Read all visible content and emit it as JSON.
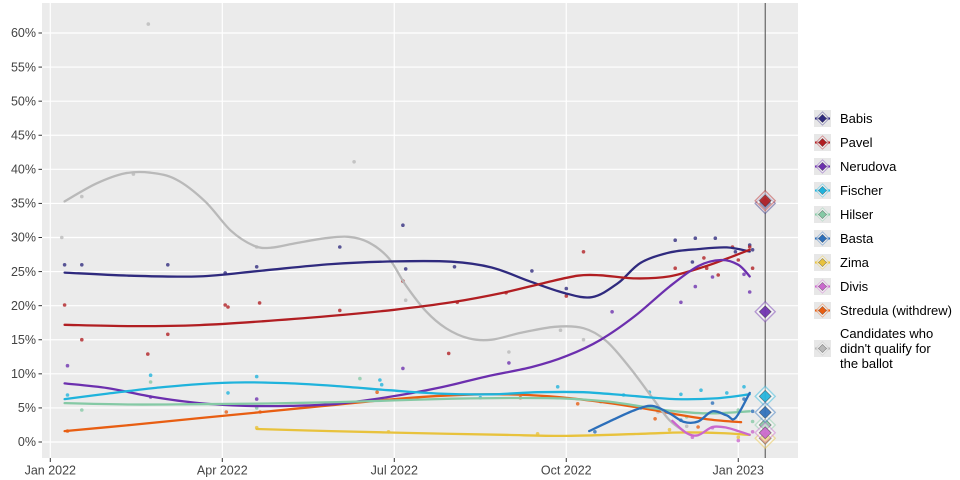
{
  "chart_data": {
    "type": "line",
    "title": "",
    "x_axis": {
      "tick_labels": [
        "Jan 2022",
        "Apr 2022",
        "Jul 2022",
        "Oct 2022",
        "Jan 2023"
      ],
      "tick_months": [
        0,
        3,
        6,
        9,
        12
      ]
    },
    "y_axis": {
      "tick_labels": [
        "0%",
        "5%",
        "10%",
        "15%",
        "20%",
        "25%",
        "30%",
        "35%",
        "40%",
        "45%",
        "50%",
        "55%",
        "60%"
      ],
      "tick_values": [
        0,
        5,
        10,
        15,
        20,
        25,
        30,
        35,
        40,
        45,
        50,
        55,
        60
      ],
      "min": 0,
      "max": 60
    },
    "grid": true,
    "legend_position": "right",
    "plot_bg": "#ebebeb",
    "grid_color": "#ffffff",
    "axis_text_color": "#444444",
    "election_line_month": 12.47,
    "election_line_color": "#4a4a4a",
    "series": [
      {
        "name": "Babis",
        "color": "#2f2a7e",
        "result": 35.0,
        "line": [
          [
            0.25,
            24.85
          ],
          [
            1.4,
            24.4
          ],
          [
            2.6,
            24.3
          ],
          [
            3.7,
            25.15
          ],
          [
            4.9,
            26.1
          ],
          [
            6.0,
            26.5
          ],
          [
            7.0,
            26.45
          ],
          [
            7.7,
            25.6
          ],
          [
            8.35,
            23.6
          ],
          [
            8.95,
            21.9
          ],
          [
            9.45,
            21.25
          ],
          [
            9.9,
            23.3
          ],
          [
            10.3,
            26.3
          ],
          [
            10.8,
            27.8
          ],
          [
            11.3,
            28.3
          ],
          [
            11.8,
            28.55
          ],
          [
            12.2,
            27.95
          ]
        ],
        "points": [
          [
            0.25,
            26
          ],
          [
            0.55,
            26
          ],
          [
            2.05,
            26
          ],
          [
            3.05,
            24.8
          ],
          [
            3.6,
            25.7
          ],
          [
            5.05,
            28.6
          ],
          [
            6.15,
            31.8
          ],
          [
            6.2,
            25.4
          ],
          [
            7.05,
            25.7
          ],
          [
            8.4,
            25.1
          ],
          [
            9.0,
            22.5
          ],
          [
            10.9,
            29.6
          ],
          [
            11.2,
            26.4
          ],
          [
            11.25,
            29.9
          ],
          [
            11.6,
            29.9
          ],
          [
            11.95,
            27.9
          ],
          [
            12.2,
            28.9
          ],
          [
            12.25,
            28.2
          ]
        ]
      },
      {
        "name": "Pavel",
        "color": "#b11e22",
        "result": 35.4,
        "line": [
          [
            0.25,
            17.2
          ],
          [
            1.4,
            17.0
          ],
          [
            2.6,
            17.15
          ],
          [
            3.7,
            17.7
          ],
          [
            4.9,
            18.5
          ],
          [
            6.0,
            19.4
          ],
          [
            7.0,
            20.5
          ],
          [
            7.9,
            21.9
          ],
          [
            8.6,
            23.3
          ],
          [
            9.2,
            24.4
          ],
          [
            9.6,
            24.45
          ],
          [
            10.2,
            24.0
          ],
          [
            10.8,
            24.3
          ],
          [
            11.4,
            25.7
          ],
          [
            11.8,
            26.9
          ],
          [
            12.2,
            28.2
          ]
        ],
        "points": [
          [
            0.25,
            20.1
          ],
          [
            0.55,
            15.0
          ],
          [
            1.7,
            12.9
          ],
          [
            2.05,
            15.8
          ],
          [
            3.05,
            20.1
          ],
          [
            3.1,
            19.8
          ],
          [
            3.65,
            20.4
          ],
          [
            5.05,
            19.3
          ],
          [
            6.15,
            23.6
          ],
          [
            6.95,
            13.0
          ],
          [
            7.1,
            20.5
          ],
          [
            7.95,
            21.9
          ],
          [
            9.0,
            21.4
          ],
          [
            9.3,
            27.9
          ],
          [
            10.9,
            25.5
          ],
          [
            11.4,
            27.0
          ],
          [
            11.45,
            25.5
          ],
          [
            11.65,
            24.5
          ],
          [
            11.9,
            28.6
          ],
          [
            12.0,
            26.7
          ],
          [
            12.2,
            28.6
          ],
          [
            12.25,
            25.5
          ]
        ]
      },
      {
        "name": "Nerudova",
        "color": "#6c2fae",
        "result": 19.1,
        "line": [
          [
            0.25,
            8.6
          ],
          [
            1.0,
            7.9
          ],
          [
            1.8,
            6.6
          ],
          [
            2.6,
            5.7
          ],
          [
            3.4,
            5.3
          ],
          [
            4.2,
            5.3
          ],
          [
            5.0,
            5.6
          ],
          [
            5.9,
            6.6
          ],
          [
            6.8,
            8.0
          ],
          [
            7.6,
            9.6
          ],
          [
            8.4,
            11.0
          ],
          [
            9.0,
            12.6
          ],
          [
            9.6,
            15.0
          ],
          [
            10.2,
            18.5
          ],
          [
            10.8,
            22.8
          ],
          [
            11.3,
            25.8
          ],
          [
            11.7,
            26.7
          ],
          [
            12.0,
            26.0
          ],
          [
            12.2,
            24.3
          ]
        ],
        "points": [
          [
            0.3,
            11.2
          ],
          [
            1.75,
            6.6
          ],
          [
            3.6,
            6.3
          ],
          [
            6.15,
            10.8
          ],
          [
            8.0,
            11.6
          ],
          [
            9.8,
            19.1
          ],
          [
            11.0,
            20.5
          ],
          [
            11.25,
            22.8
          ],
          [
            11.55,
            24.2
          ],
          [
            12.1,
            24.6
          ],
          [
            12.2,
            22.0
          ]
        ]
      },
      {
        "name": "Fischer",
        "color": "#1fb3dc",
        "result": 6.7,
        "line": [
          [
            0.25,
            6.3
          ],
          [
            1.0,
            7.1
          ],
          [
            1.8,
            7.9
          ],
          [
            2.6,
            8.5
          ],
          [
            3.4,
            8.75
          ],
          [
            4.2,
            8.6
          ],
          [
            5.0,
            8.2
          ],
          [
            5.9,
            7.6
          ],
          [
            6.8,
            7.1
          ],
          [
            7.7,
            7.0
          ],
          [
            8.5,
            7.3
          ],
          [
            9.3,
            7.3
          ],
          [
            10.1,
            6.8
          ],
          [
            10.9,
            6.3
          ],
          [
            11.6,
            6.4
          ],
          [
            12.2,
            7.0
          ]
        ],
        "points": [
          [
            0.3,
            6.9
          ],
          [
            1.75,
            9.8
          ],
          [
            3.1,
            7.2
          ],
          [
            3.6,
            9.6
          ],
          [
            5.75,
            9.1
          ],
          [
            5.78,
            8.4
          ],
          [
            7.5,
            6.5
          ],
          [
            8.85,
            8.1
          ],
          [
            10.0,
            6.9
          ],
          [
            10.45,
            7.3
          ],
          [
            11.0,
            7.0
          ],
          [
            11.35,
            7.6
          ],
          [
            11.8,
            7.2
          ],
          [
            12.1,
            8.1
          ]
        ]
      },
      {
        "name": "Hilser",
        "color": "#85c9a5",
        "result": 2.5,
        "line": [
          [
            0.25,
            5.7
          ],
          [
            1.4,
            5.5
          ],
          [
            2.6,
            5.55
          ],
          [
            3.8,
            5.65
          ],
          [
            5.0,
            5.85
          ],
          [
            6.0,
            6.1
          ],
          [
            7.0,
            6.35
          ],
          [
            8.0,
            6.45
          ],
          [
            8.9,
            6.4
          ],
          [
            9.7,
            5.95
          ],
          [
            10.4,
            5.1
          ],
          [
            10.9,
            4.5
          ],
          [
            11.5,
            4.2
          ],
          [
            12.2,
            4.5
          ]
        ],
        "points": [
          [
            0.55,
            4.7
          ],
          [
            1.75,
            8.8
          ],
          [
            3.6,
            5.0
          ],
          [
            5.4,
            9.3
          ],
          [
            9.6,
            5.9
          ],
          [
            10.5,
            5.1
          ],
          [
            11.1,
            3.7
          ],
          [
            12.0,
            4.7
          ],
          [
            12.25,
            3.0
          ]
        ]
      },
      {
        "name": "Basta",
        "color": "#2c6fba",
        "result": 4.35,
        "line": [
          [
            9.4,
            1.6
          ],
          [
            9.8,
            3.2
          ],
          [
            10.2,
            4.7
          ],
          [
            10.5,
            5.3
          ],
          [
            10.8,
            4.2
          ],
          [
            11.05,
            2.95
          ],
          [
            11.3,
            3.0
          ],
          [
            11.55,
            4.5
          ],
          [
            11.8,
            3.9
          ],
          [
            11.95,
            3.5
          ],
          [
            12.2,
            7.2
          ]
        ],
        "points": [
          [
            9.5,
            1.5
          ],
          [
            10.3,
            5.0
          ],
          [
            11.0,
            3.2
          ],
          [
            11.55,
            5.7
          ],
          [
            12.1,
            6.3
          ],
          [
            12.25,
            4.5
          ]
        ]
      },
      {
        "name": "Zima",
        "color": "#e8c23c",
        "result": 0.55,
        "line": [
          [
            3.6,
            1.9
          ],
          [
            4.9,
            1.6
          ],
          [
            6.4,
            1.3
          ],
          [
            7.9,
            1.05
          ],
          [
            9.0,
            0.9
          ],
          [
            10.3,
            1.2
          ],
          [
            11.0,
            1.4
          ],
          [
            11.7,
            1.3
          ],
          [
            12.2,
            1.05
          ]
        ],
        "points": [
          [
            3.6,
            2.1
          ],
          [
            5.9,
            1.5
          ],
          [
            8.5,
            1.2
          ],
          [
            10.8,
            1.8
          ],
          [
            12.0,
            0.7
          ]
        ]
      },
      {
        "name": "Divis",
        "color": "#ca67cd",
        "result": 1.35,
        "line": [
          [
            10.85,
            3.1
          ],
          [
            11.1,
            1.3
          ],
          [
            11.3,
            1.0
          ],
          [
            11.55,
            2.2
          ],
          [
            11.8,
            2.1
          ],
          [
            12.0,
            1.6
          ],
          [
            12.2,
            1.05
          ]
        ],
        "points": [
          [
            11.2,
            0.7
          ],
          [
            11.55,
            2.1
          ],
          [
            12.0,
            0.2
          ],
          [
            12.25,
            1.5
          ]
        ]
      },
      {
        "name": "Stredula (withdrew)",
        "color": "#e85e12",
        "result": null,
        "line": [
          [
            0.25,
            1.6
          ],
          [
            1.4,
            2.5
          ],
          [
            2.6,
            3.5
          ],
          [
            3.7,
            4.4
          ],
          [
            4.9,
            5.4
          ],
          [
            6.0,
            6.3
          ],
          [
            7.0,
            6.85
          ],
          [
            7.9,
            7.0
          ],
          [
            8.7,
            6.7
          ],
          [
            9.5,
            6.0
          ],
          [
            10.3,
            5.0
          ],
          [
            10.9,
            4.1
          ],
          [
            11.5,
            3.3
          ],
          [
            12.05,
            2.9
          ]
        ],
        "points": [
          [
            0.3,
            1.6
          ],
          [
            3.07,
            4.4
          ],
          [
            3.66,
            4.4
          ],
          [
            5.7,
            7.3
          ],
          [
            8.2,
            6.5
          ],
          [
            9.2,
            5.6
          ],
          [
            10.55,
            3.4
          ],
          [
            11.3,
            2.2
          ]
        ]
      },
      {
        "name": "Candidates who didn't qualify for the ballot",
        "color": "#b9b9b9",
        "result": null,
        "line": [
          [
            0.25,
            35.3
          ],
          [
            0.8,
            37.9
          ],
          [
            1.3,
            39.4
          ],
          [
            1.75,
            39.5
          ],
          [
            2.2,
            38.5
          ],
          [
            2.7,
            35.3
          ],
          [
            3.15,
            31.0
          ],
          [
            3.55,
            28.8
          ],
          [
            3.85,
            28.5
          ],
          [
            4.3,
            29.2
          ],
          [
            4.8,
            29.9
          ],
          [
            5.2,
            30.1
          ],
          [
            5.55,
            29.3
          ],
          [
            5.9,
            27.0
          ],
          [
            6.2,
            23.0
          ],
          [
            6.55,
            19.2
          ],
          [
            6.9,
            16.7
          ],
          [
            7.3,
            15.2
          ],
          [
            7.7,
            15.0
          ],
          [
            8.2,
            16.0
          ],
          [
            8.8,
            16.9
          ],
          [
            9.3,
            16.7
          ],
          [
            9.7,
            14.8
          ],
          [
            10.1,
            11.0
          ],
          [
            10.5,
            6.5
          ],
          [
            10.8,
            3.2
          ],
          [
            11.07,
            1.5
          ]
        ],
        "points": [
          [
            0.2,
            30.0
          ],
          [
            0.55,
            36.0
          ],
          [
            1.45,
            39.3
          ],
          [
            1.71,
            61.3
          ],
          [
            3.6,
            28.6
          ],
          [
            5.3,
            41.1
          ],
          [
            6.2,
            20.8
          ],
          [
            8.0,
            13.2
          ],
          [
            8.9,
            16.4
          ],
          [
            9.3,
            15.0
          ],
          [
            10.6,
            4.4
          ],
          [
            11.1,
            2.3
          ]
        ]
      }
    ],
    "legend": [
      {
        "label": "Babis"
      },
      {
        "label": "Pavel"
      },
      {
        "label": "Nerudova"
      },
      {
        "label": "Fischer"
      },
      {
        "label": "Hilser"
      },
      {
        "label": "Basta"
      },
      {
        "label": "Zima"
      },
      {
        "label": "Divis"
      },
      {
        "label": "Stredula (withdrew)"
      },
      {
        "label": "Candidates who didn't qualify for the ballot",
        "lines": [
          "Candidates who",
          "didn't qualify for",
          "the ballot"
        ]
      }
    ]
  }
}
